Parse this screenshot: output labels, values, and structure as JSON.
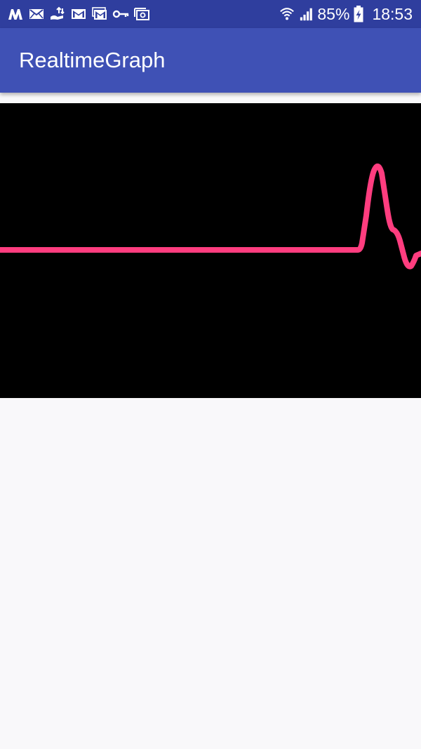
{
  "status_bar": {
    "battery_percent": "85%",
    "time": "18:53",
    "left_icons": [
      "notification-app-icon",
      "email-icon",
      "transfer-icon",
      "gmail-icon",
      "gmail-icon",
      "vpn-key-icon",
      "screenshot-icon"
    ],
    "right_icons": [
      "wifi-icon",
      "cellular-signal-icon",
      "battery-charging-icon"
    ]
  },
  "app_bar": {
    "title": "RealtimeGraph"
  },
  "graph": {
    "background_color": "#000000",
    "line_color": "#ff3d7f"
  }
}
